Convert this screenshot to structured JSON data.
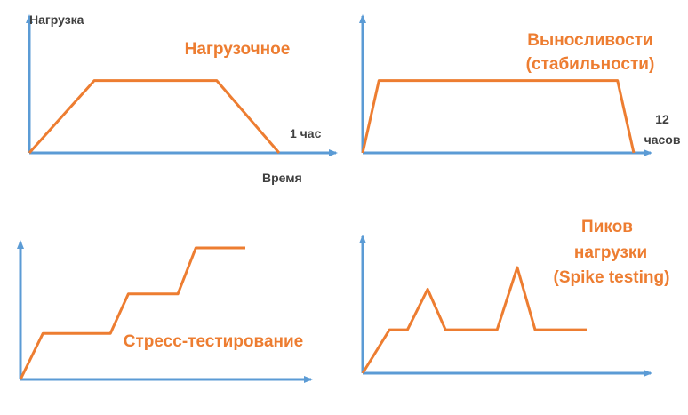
{
  "colors": {
    "axis": "#5B9BD5",
    "curve": "#ED7D31",
    "text_dark": "#404040"
  },
  "diagrams": [
    {
      "id": "load",
      "title_lines": [
        "Нагрузочное"
      ],
      "y_axis_label": "Нагрузка",
      "x_axis_label": "Время",
      "x_end_label_lines": [
        "1 час"
      ],
      "profile": [
        [
          0,
          0
        ],
        [
          0.26,
          0.55
        ],
        [
          0.75,
          0.55
        ],
        [
          1,
          0
        ]
      ]
    },
    {
      "id": "endurance",
      "title_lines": [
        "Выносливости",
        "(стабильности)"
      ],
      "x_end_label_lines": [
        "12",
        "часов"
      ],
      "profile": [
        [
          0,
          0
        ],
        [
          0.06,
          0.55
        ],
        [
          0.94,
          0.55
        ],
        [
          1,
          0
        ]
      ]
    },
    {
      "id": "stress",
      "title_lines": [
        "Стресс-тестирование"
      ],
      "profile": [
        [
          0,
          0
        ],
        [
          0.1,
          0.35
        ],
        [
          0.4,
          0.35
        ],
        [
          0.48,
          0.65
        ],
        [
          0.7,
          0.65
        ],
        [
          0.78,
          1.0
        ],
        [
          1,
          1.0
        ]
      ]
    },
    {
      "id": "spike",
      "title_lines": [
        "Пиков",
        "нагрузки",
        "(Spike testing)"
      ],
      "profile": [
        [
          0,
          0
        ],
        [
          0.12,
          0.3
        ],
        [
          0.2,
          0.3
        ],
        [
          0.29,
          0.58
        ],
        [
          0.37,
          0.3
        ],
        [
          0.6,
          0.3
        ],
        [
          0.69,
          0.73
        ],
        [
          0.77,
          0.3
        ],
        [
          1,
          0.3
        ]
      ]
    }
  ]
}
